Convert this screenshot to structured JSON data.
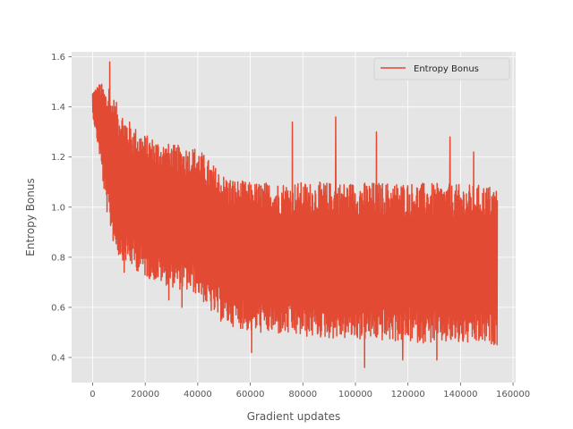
{
  "chart_data": {
    "type": "line",
    "style": "ggplot",
    "title": "",
    "xlabel": "Gradient updates",
    "ylabel": "Entropy Bonus",
    "xlim": [
      -8000,
      161000
    ],
    "ylim": [
      0.3,
      1.62
    ],
    "xticks": [
      0,
      20000,
      40000,
      60000,
      80000,
      100000,
      120000,
      140000,
      160000
    ],
    "xtick_labels": [
      "0",
      "20000",
      "40000",
      "60000",
      "80000",
      "100000",
      "120000",
      "140000",
      "160000"
    ],
    "yticks": [
      0.4,
      0.6,
      0.8,
      1.0,
      1.2,
      1.4,
      1.6
    ],
    "ytick_labels": [
      "0.4",
      "0.6",
      "0.8",
      "1.0",
      "1.2",
      "1.4",
      "1.6"
    ],
    "grid": true,
    "legend": {
      "placement": "top-right"
    },
    "colors": {
      "line": "#E24A33",
      "panel": "#E5E5E5",
      "grid": "#FFFFFF"
    },
    "series": [
      {
        "name": "Entropy Bonus",
        "envelope": {
          "x": [
            0,
            3000,
            5000,
            8000,
            10000,
            15000,
            20000,
            30000,
            40000,
            45000,
            50000,
            55000,
            60000,
            80000,
            100000,
            120000,
            140000,
            150000,
            154000
          ],
          "upper": [
            1.46,
            1.5,
            1.47,
            1.44,
            1.4,
            1.33,
            1.29,
            1.25,
            1.24,
            1.18,
            1.13,
            1.11,
            1.1,
            1.1,
            1.1,
            1.1,
            1.09,
            1.09,
            1.08
          ],
          "lower": [
            1.37,
            1.18,
            1.0,
            0.85,
            0.8,
            0.76,
            0.72,
            0.68,
            0.65,
            0.58,
            0.53,
            0.52,
            0.5,
            0.48,
            0.47,
            0.46,
            0.45,
            0.45,
            0.45
          ]
        },
        "spikes": [
          {
            "x": 6500,
            "y": 1.58
          },
          {
            "x": 6200,
            "y": 1.47
          },
          {
            "x": 12000,
            "y": 0.74
          },
          {
            "x": 29000,
            "y": 0.63
          },
          {
            "x": 34000,
            "y": 0.6
          },
          {
            "x": 60500,
            "y": 0.42
          },
          {
            "x": 76000,
            "y": 1.34
          },
          {
            "x": 92500,
            "y": 1.36
          },
          {
            "x": 103500,
            "y": 0.36
          },
          {
            "x": 108000,
            "y": 1.3
          },
          {
            "x": 118000,
            "y": 0.39
          },
          {
            "x": 131000,
            "y": 0.39
          },
          {
            "x": 136000,
            "y": 1.28
          },
          {
            "x": 145000,
            "y": 1.22
          }
        ]
      }
    ]
  }
}
